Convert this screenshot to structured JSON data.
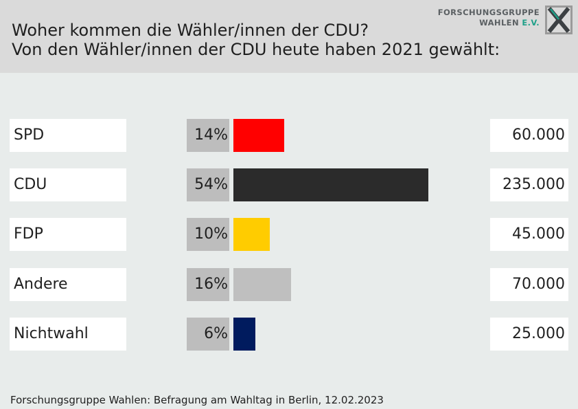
{
  "title": {
    "line1": "Woher kommen die Wähler/innen der CDU?",
    "line2": "Von den Wähler/innen der CDU heute haben 2021 gewählt:"
  },
  "logo": {
    "line1": "FORSCHUNGSGRUPPE",
    "line2_main": "WAHLEN",
    "line2_suffix": "E.V.",
    "colors": {
      "text": "#5b6063",
      "accent": "#1fa089",
      "mark": "#3c4043"
    }
  },
  "chart_data": {
    "type": "bar",
    "orientation": "horizontal",
    "title": "Woher kommen die Wähler/innen der CDU? Von den Wähler/innen der CDU heute haben 2021 gewählt:",
    "categories": [
      "SPD",
      "CDU",
      "FDP",
      "Andere",
      "Nichtwahl"
    ],
    "values": [
      14,
      54,
      10,
      16,
      6
    ],
    "value_labels": [
      "14%",
      "54%",
      "10%",
      "16%",
      "6%"
    ],
    "absolute_labels": [
      "60.000",
      "235.000",
      "45.000",
      "70.000",
      "25.000"
    ],
    "absolute_values": [
      60000,
      235000,
      45000,
      70000,
      25000
    ],
    "colors": [
      "#ff0000",
      "#2b2b2b",
      "#ffcc00",
      "#bfbfbf",
      "#001b5e"
    ],
    "unit": "%",
    "xlim": [
      0,
      54
    ]
  },
  "source": "Forschungsgruppe Wahlen: Befragung am Wahltag in Berlin, 12.02.2023"
}
